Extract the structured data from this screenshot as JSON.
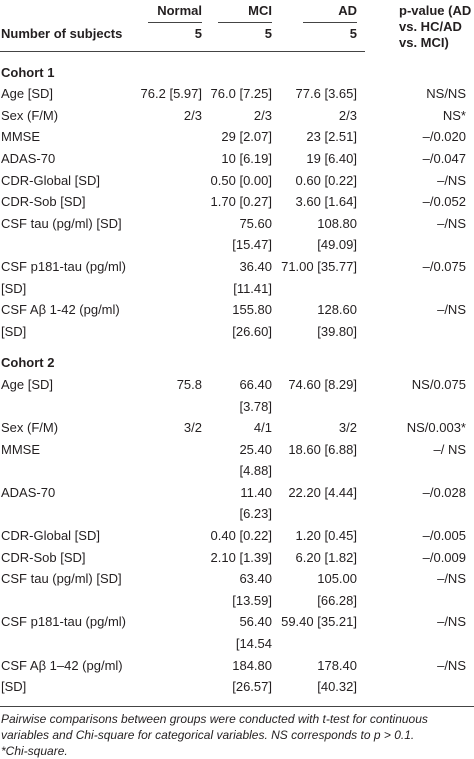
{
  "header": {
    "columns": [
      "Normal",
      "MCI",
      "AD",
      "p-value (AD vs. HC/AD vs. MCI)"
    ],
    "subjects_label": "Number of subjects",
    "subjects": [
      5,
      5,
      5
    ]
  },
  "sections": [
    {
      "title": "Cohort 1",
      "rows": [
        [
          "Age [SD]",
          "76.2 [5.97]",
          "76.0 [7.25]",
          "77.6 [3.65]",
          "NS/NS"
        ],
        [
          "Sex (F/M)",
          "2/3",
          "2/3",
          "2/3",
          "NS*"
        ],
        [
          "MMSE",
          null,
          "29 [2.07]",
          "23 [2.51]",
          "–/0.020"
        ],
        [
          "ADAS-70",
          null,
          "10 [6.19]",
          "19 [6.40]",
          "–/0.047"
        ],
        [
          "CDR-Global [SD]",
          null,
          "0.50 [0.00]",
          "0.60 [0.22]",
          "–/NS"
        ],
        [
          "CDR-Sob [SD]",
          null,
          "1.70 [0.27]",
          "3.60 [1.64]",
          "–/0.052"
        ],
        [
          "CSF tau (pg/ml) [SD]",
          null,
          "75.60 [15.47]",
          "108.80 [49.09]",
          "–/NS"
        ],
        [
          "CSF p181-tau (pg/ml) [SD]",
          null,
          "36.40 [11.41]",
          "71.00 [35.77]",
          "–/0.075"
        ],
        [
          "CSF Aβ 1-42 (pg/ml) [SD]",
          null,
          "155.80 [26.60]",
          "128.60 [39.80]",
          "–/NS"
        ]
      ]
    },
    {
      "title": "Cohort 2",
      "rows": [
        [
          "Age [SD]",
          "75.8",
          "66.40 [3.78]",
          "74.60 [8.29]",
          "NS/0.075"
        ],
        [
          "Sex (F/M)",
          "3/2",
          "4/1",
          "3/2",
          "NS/0.003*"
        ],
        [
          "MMSE",
          null,
          "25.40 [4.88]",
          "18.60 [6.88]",
          "–/ NS"
        ],
        [
          "ADAS-70",
          null,
          "11.40 [6.23]",
          "22.20 [4.44]",
          "–/0.028"
        ],
        [
          "CDR-Global [SD]",
          null,
          "0.40 [0.22]",
          "1.20 [0.45]",
          "–/0.005"
        ],
        [
          "CDR-Sob [SD]",
          null,
          "2.10 [1.39]",
          "6.20 [1.82]",
          "–/0.009"
        ],
        [
          "CSF tau (pg/ml) [SD]",
          null,
          "63.40 [13.59]",
          "105.00 [66.28]",
          "–/NS"
        ],
        [
          "CSF p181-tau (pg/ml)",
          null,
          "56.40 [14.54",
          "59.40 [35.21]",
          "–/NS"
        ],
        [
          "CSF Aβ 1–42 (pg/ml) [SD]",
          null,
          "184.80 [26.57]",
          "178.40 [40.32]",
          "–/NS"
        ]
      ]
    }
  ],
  "footnote": [
    "Pairwise comparisons between groups were conducted with t-test for continuous variables and Chi-square for categorical variables. NS corresponds to p > 0.1.",
    "*Chi-square."
  ]
}
